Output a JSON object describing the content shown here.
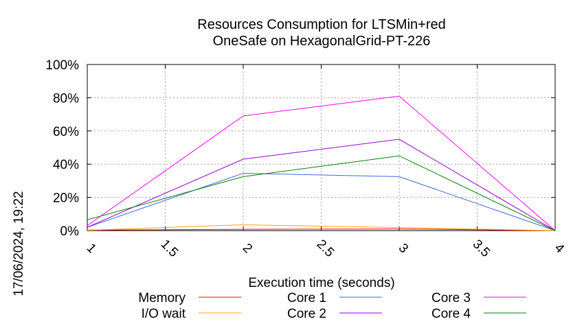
{
  "chart_data": {
    "type": "line",
    "title_lines": [
      "Resources Consumption for LTSMin+red",
      "OneSafe on HexagonalGrid-PT-226"
    ],
    "xlabel": "Execution time (seconds)",
    "ylabel": "",
    "side_label": "17/06/2024, 19:22",
    "xlim": [
      1,
      4
    ],
    "ylim": [
      0,
      100
    ],
    "x_ticks": [
      1,
      1.5,
      2,
      2.5,
      3,
      3.5,
      4
    ],
    "x_tick_labels": [
      "1",
      "1.5",
      "2",
      "2.5",
      "3",
      "3.5",
      "4"
    ],
    "y_ticks": [
      0,
      20,
      40,
      60,
      80,
      100
    ],
    "y_tick_labels": [
      "0%",
      "20%",
      "40%",
      "60%",
      "80%",
      "100%"
    ],
    "grid": true,
    "legend_position": "bottom",
    "series": [
      {
        "name": "Memory",
        "color": "#ff0000",
        "x": [
          1,
          2,
          3,
          4
        ],
        "y": [
          0.3,
          0.8,
          1.0,
          0
        ]
      },
      {
        "name": "I/O wait",
        "color": "#ffa500",
        "x": [
          1,
          2,
          3,
          4
        ],
        "y": [
          0.2,
          3.5,
          1.8,
          0
        ]
      },
      {
        "name": "Core 1",
        "color": "#4169e1",
        "x": [
          1,
          2,
          3,
          4
        ],
        "y": [
          2,
          34.5,
          32.5,
          0
        ]
      },
      {
        "name": "Core 2",
        "color": "#9400d3",
        "x": [
          1,
          2,
          3,
          4
        ],
        "y": [
          2,
          43,
          55,
          0
        ]
      },
      {
        "name": "Core 3",
        "color": "#ff00ff",
        "x": [
          1,
          2,
          3,
          4
        ],
        "y": [
          3,
          69,
          81,
          0
        ]
      },
      {
        "name": "Core 4",
        "color": "#008000",
        "x": [
          1,
          2,
          3,
          4
        ],
        "y": [
          6.5,
          32.5,
          45,
          0
        ]
      }
    ]
  }
}
